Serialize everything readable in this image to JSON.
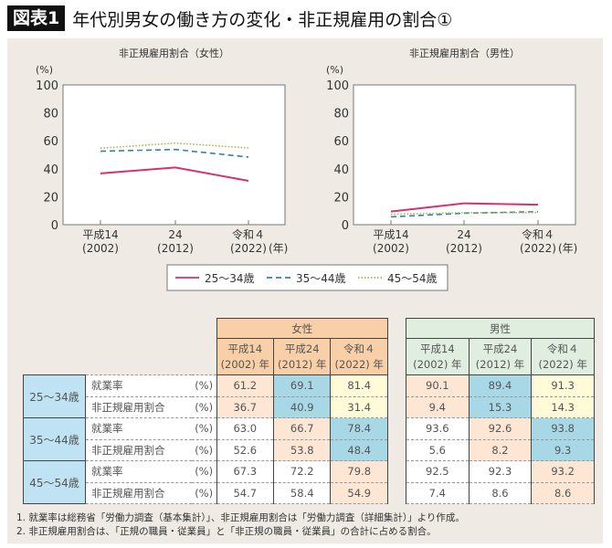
{
  "header": {
    "badge": "図表1",
    "title": "年代別男女の働き方の変化・非正規雇用の割合①"
  },
  "chart_data": [
    {
      "type": "line",
      "title": "非正規雇用割合（女性）",
      "ylabel": "(%)",
      "ylim": [
        0,
        100
      ],
      "yticks": [
        0,
        20,
        40,
        60,
        80,
        100
      ],
      "categories": [
        [
          "平成14",
          "(2002)"
        ],
        [
          "24",
          "(2012)"
        ],
        [
          "令和４",
          "(2022)"
        ]
      ],
      "x_unit": "(年)",
      "series": [
        {
          "name": "25～34歳",
          "values": [
            36.7,
            40.9,
            31.4
          ],
          "color": "#d6336c",
          "style": "solid"
        },
        {
          "name": "35～44歳",
          "values": [
            52.6,
            53.8,
            48.4
          ],
          "color": "#3a7fa8",
          "style": "dashed"
        },
        {
          "name": "45～54歳",
          "values": [
            54.7,
            58.4,
            54.9
          ],
          "color": "#a9b84a",
          "style": "dotted"
        }
      ]
    },
    {
      "type": "line",
      "title": "非正規雇用割合（男性）",
      "ylabel": "(%)",
      "ylim": [
        0,
        100
      ],
      "yticks": [
        0,
        20,
        40,
        60,
        80,
        100
      ],
      "categories": [
        [
          "平成14",
          "(2002)"
        ],
        [
          "24",
          "(2012)"
        ],
        [
          "令和４",
          "(2022)"
        ]
      ],
      "x_unit": "(年)",
      "series": [
        {
          "name": "25～34歳",
          "values": [
            9.4,
            15.3,
            14.3
          ],
          "color": "#d6336c",
          "style": "solid"
        },
        {
          "name": "35～44歳",
          "values": [
            5.6,
            8.2,
            9.3
          ],
          "color": "#3a7fa8",
          "style": "dashed"
        },
        {
          "name": "45～54歳",
          "values": [
            7.4,
            8.6,
            8.6
          ],
          "color": "#a9b84a",
          "style": "dotted"
        }
      ]
    }
  ],
  "legend": [
    "25～34歳",
    "35～44歳",
    "45～54歳"
  ],
  "table": {
    "female_label": "女性",
    "male_label": "男性",
    "years": [
      [
        "平成14",
        "(2002) 年"
      ],
      [
        "平成24",
        "(2012) 年"
      ],
      [
        "令和４",
        "(2022) 年"
      ]
    ],
    "unit": "(%)",
    "groups": [
      {
        "age": "25～34歳",
        "rows": [
          {
            "label": "就業率",
            "female": [
              "61.2",
              "69.1",
              "81.4"
            ],
            "male": [
              "90.1",
              "89.4",
              "91.3"
            ]
          },
          {
            "label": "非正規雇用割合",
            "female": [
              "36.7",
              "40.9",
              "31.4"
            ],
            "male": [
              "9.4",
              "15.3",
              "14.3"
            ]
          }
        ]
      },
      {
        "age": "35～44歳",
        "rows": [
          {
            "label": "就業率",
            "female": [
              "63.0",
              "66.7",
              "78.4"
            ],
            "male": [
              "93.6",
              "92.6",
              "93.8"
            ]
          },
          {
            "label": "非正規雇用割合",
            "female": [
              "52.6",
              "53.8",
              "48.4"
            ],
            "male": [
              "5.6",
              "8.2",
              "9.3"
            ]
          }
        ]
      },
      {
        "age": "45～54歳",
        "rows": [
          {
            "label": "就業率",
            "female": [
              "67.3",
              "72.2",
              "79.8"
            ],
            "male": [
              "92.5",
              "92.3",
              "93.2"
            ]
          },
          {
            "label": "非正規雇用割合",
            "female": [
              "54.7",
              "58.4",
              "54.9"
            ],
            "male": [
              "7.4",
              "8.6",
              "8.6"
            ]
          }
        ]
      }
    ]
  },
  "notes": [
    "1. 就業率は総務省「労働力調査（基本集計）」、非正規雇用割合は「労働力調査（詳細集計）」より作成。",
    "2. 非正規雇用割合は、「正規の職員・従業員」と「非正規の職員・従業員」の合計に占める割合。"
  ]
}
